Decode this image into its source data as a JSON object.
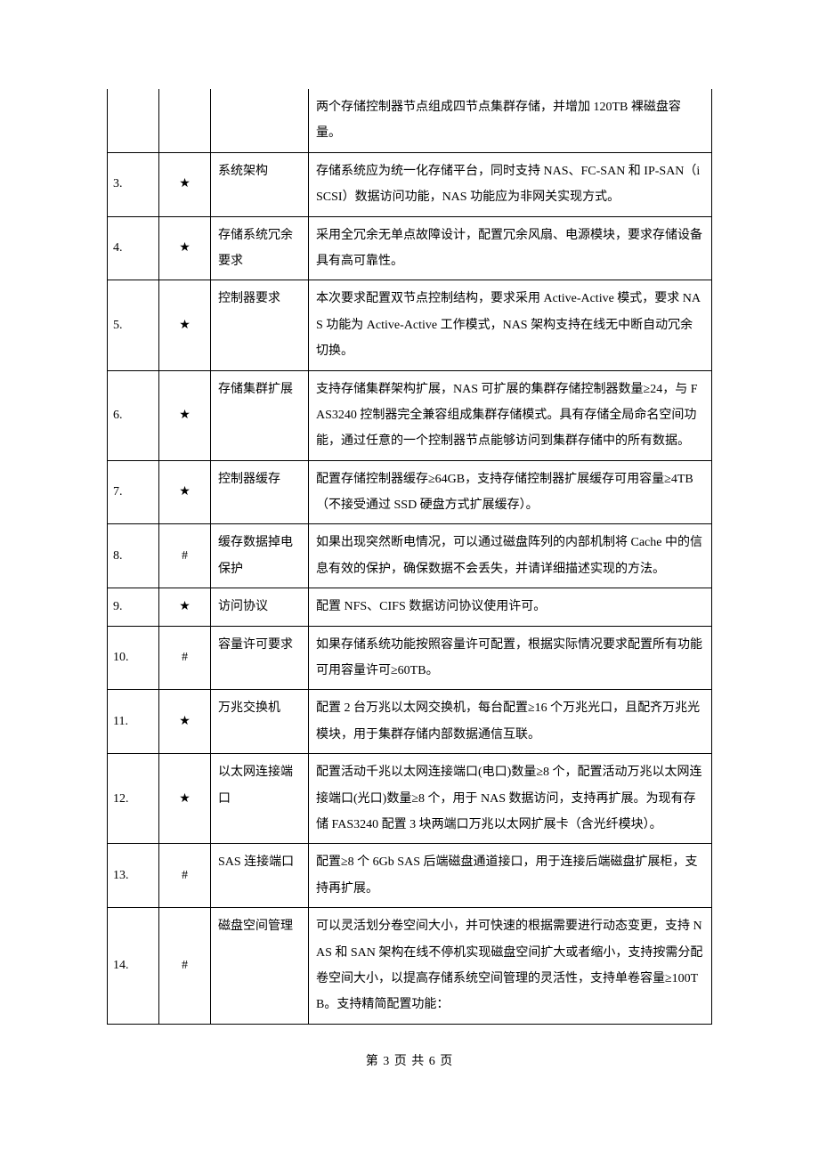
{
  "table": {
    "rows": [
      {
        "num": "",
        "mark": "",
        "name": "",
        "desc": "两个存储控制器节点组成四节点集群存储，并增加 120TB 裸磁盘容量。"
      },
      {
        "num": "3.",
        "mark": "★",
        "name": "系统架构",
        "desc": "存储系统应为统一化存储平台，同时支持 NAS、FC-SAN 和 IP-SAN（iSCSI）数据访问功能，NAS 功能应为非网关实现方式。"
      },
      {
        "num": "4.",
        "mark": "★",
        "name": "存储系统冗余要求",
        "desc": "采用全冗余无单点故障设计，配置冗余风扇、电源模块，要求存储设备具有高可靠性。"
      },
      {
        "num": "5.",
        "mark": "★",
        "name": "控制器要求",
        "desc": "本次要求配置双节点控制结构，要求采用 Active-Active 模式，要求 NAS 功能为 Active-Active 工作模式，NAS 架构支持在线无中断自动冗余切换。"
      },
      {
        "num": "6.",
        "mark": "★",
        "name": "存储集群扩展",
        "desc": "支持存储集群架构扩展，NAS 可扩展的集群存储控制器数量≥24，与 FAS3240 控制器完全兼容组成集群存储模式。具有存储全局命名空间功能，通过任意的一个控制器节点能够访问到集群存储中的所有数据。"
      },
      {
        "num": "7.",
        "mark": "★",
        "name": "控制器缓存",
        "desc": "配置存储控制器缓存≥64GB，支持存储控制器扩展缓存可用容量≥4TB（不接受通过 SSD 硬盘方式扩展缓存）。"
      },
      {
        "num": "8.",
        "mark": "#",
        "name": "缓存数据掉电保护",
        "desc": "如果出现突然断电情况，可以通过磁盘阵列的内部机制将 Cache 中的信息有效的保护，确保数据不会丢失，并请详细描述实现的方法。"
      },
      {
        "num": "9.",
        "mark": "★",
        "name": "访问协议",
        "desc": "配置 NFS、CIFS 数据访问协议使用许可。"
      },
      {
        "num": "10.",
        "mark": "#",
        "name": "容量许可要求",
        "desc": "如果存储系统功能按照容量许可配置，根据实际情况要求配置所有功能可用容量许可≥60TB。"
      },
      {
        "num": "11.",
        "mark": "★",
        "name": "万兆交换机",
        "desc": "配置 2 台万兆以太网交换机，每台配置≥16 个万兆光口，且配齐万兆光模块，用于集群存储内部数据通信互联。"
      },
      {
        "num": "12.",
        "mark": "★",
        "name": "以太网连接端口",
        "desc": "配置活动千兆以太网连接端口(电口)数量≥8 个，配置活动万兆以太网连接端口(光口)数量≥8 个，用于 NAS 数据访问，支持再扩展。为现有存储 FAS3240 配置 3 块两端口万兆以太网扩展卡（含光纤模块）。"
      },
      {
        "num": "13.",
        "mark": "#",
        "name": "SAS 连接端口",
        "desc": "配置≥8 个 6Gb SAS 后端磁盘通道接口，用于连接后端磁盘扩展柜，支持再扩展。"
      },
      {
        "num": "14.",
        "mark": "#",
        "name": "磁盘空间管理",
        "desc": "可以灵活划分卷空间大小，并可快速的根据需要进行动态变更，支持 NAS 和 SAN 架构在线不停机实现磁盘空间扩大或者缩小，支持按需分配卷空间大小，以提高存储系统空间管理的灵活性，支持单卷容量≥100TB。支持精简配置功能："
      }
    ]
  },
  "footer": {
    "text": "第 3 页 共 6 页"
  }
}
